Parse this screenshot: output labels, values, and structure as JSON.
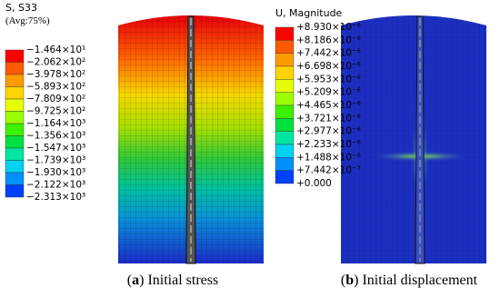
{
  "panels": [
    {
      "legend": {
        "title": "S, S33",
        "subtitle": "(Avg:75%)",
        "labels": [
          "−1.464×10¹",
          "−2.062×10²",
          "−3.978×10²",
          "−5.893×10²",
          "−7.809×10²",
          "−9.725×10²",
          "−1.164×10³",
          "−1.356×10³",
          "−1.547×10³",
          "−1.739×10³",
          "−1.930×10³",
          "−2.122×10³",
          "−2.313×10³"
        ],
        "colors": [
          "#ff0000",
          "#ff5a00",
          "#ff9a00",
          "#ffd400",
          "#e6ff00",
          "#9cff00",
          "#3cf000",
          "#00e040",
          "#00e6a0",
          "#00d2f0",
          "#0090ff",
          "#0040ff"
        ]
      },
      "caption": {
        "prefix": "(",
        "label": "a",
        "suffix": ") Initial stress"
      }
    },
    {
      "legend": {
        "title": "U, Magnitude",
        "labels": [
          "+8.930×10⁻⁶",
          "+8.186×10⁻⁶",
          "+7.442×10⁻⁶",
          "+6.698×10⁻⁶",
          "+5.953×10⁻⁶",
          "+5.209×10⁻⁶",
          "+4.465×10⁻⁶",
          "+3.721×10⁻⁶",
          "+2.977×10⁻⁶",
          "+2.233×10⁻⁶",
          "+1.488×10⁻⁶",
          "+7.442×10⁻⁷",
          "+0.000"
        ],
        "colors": [
          "#ff0000",
          "#ff5a00",
          "#ff9a00",
          "#ffd400",
          "#e6ff00",
          "#9cff00",
          "#3cf000",
          "#00e040",
          "#00e6a0",
          "#00d2f0",
          "#0090ff",
          "#0040ff"
        ]
      },
      "caption": {
        "prefix": "(",
        "label": "b",
        "suffix": ") Initial displacement"
      }
    }
  ]
}
